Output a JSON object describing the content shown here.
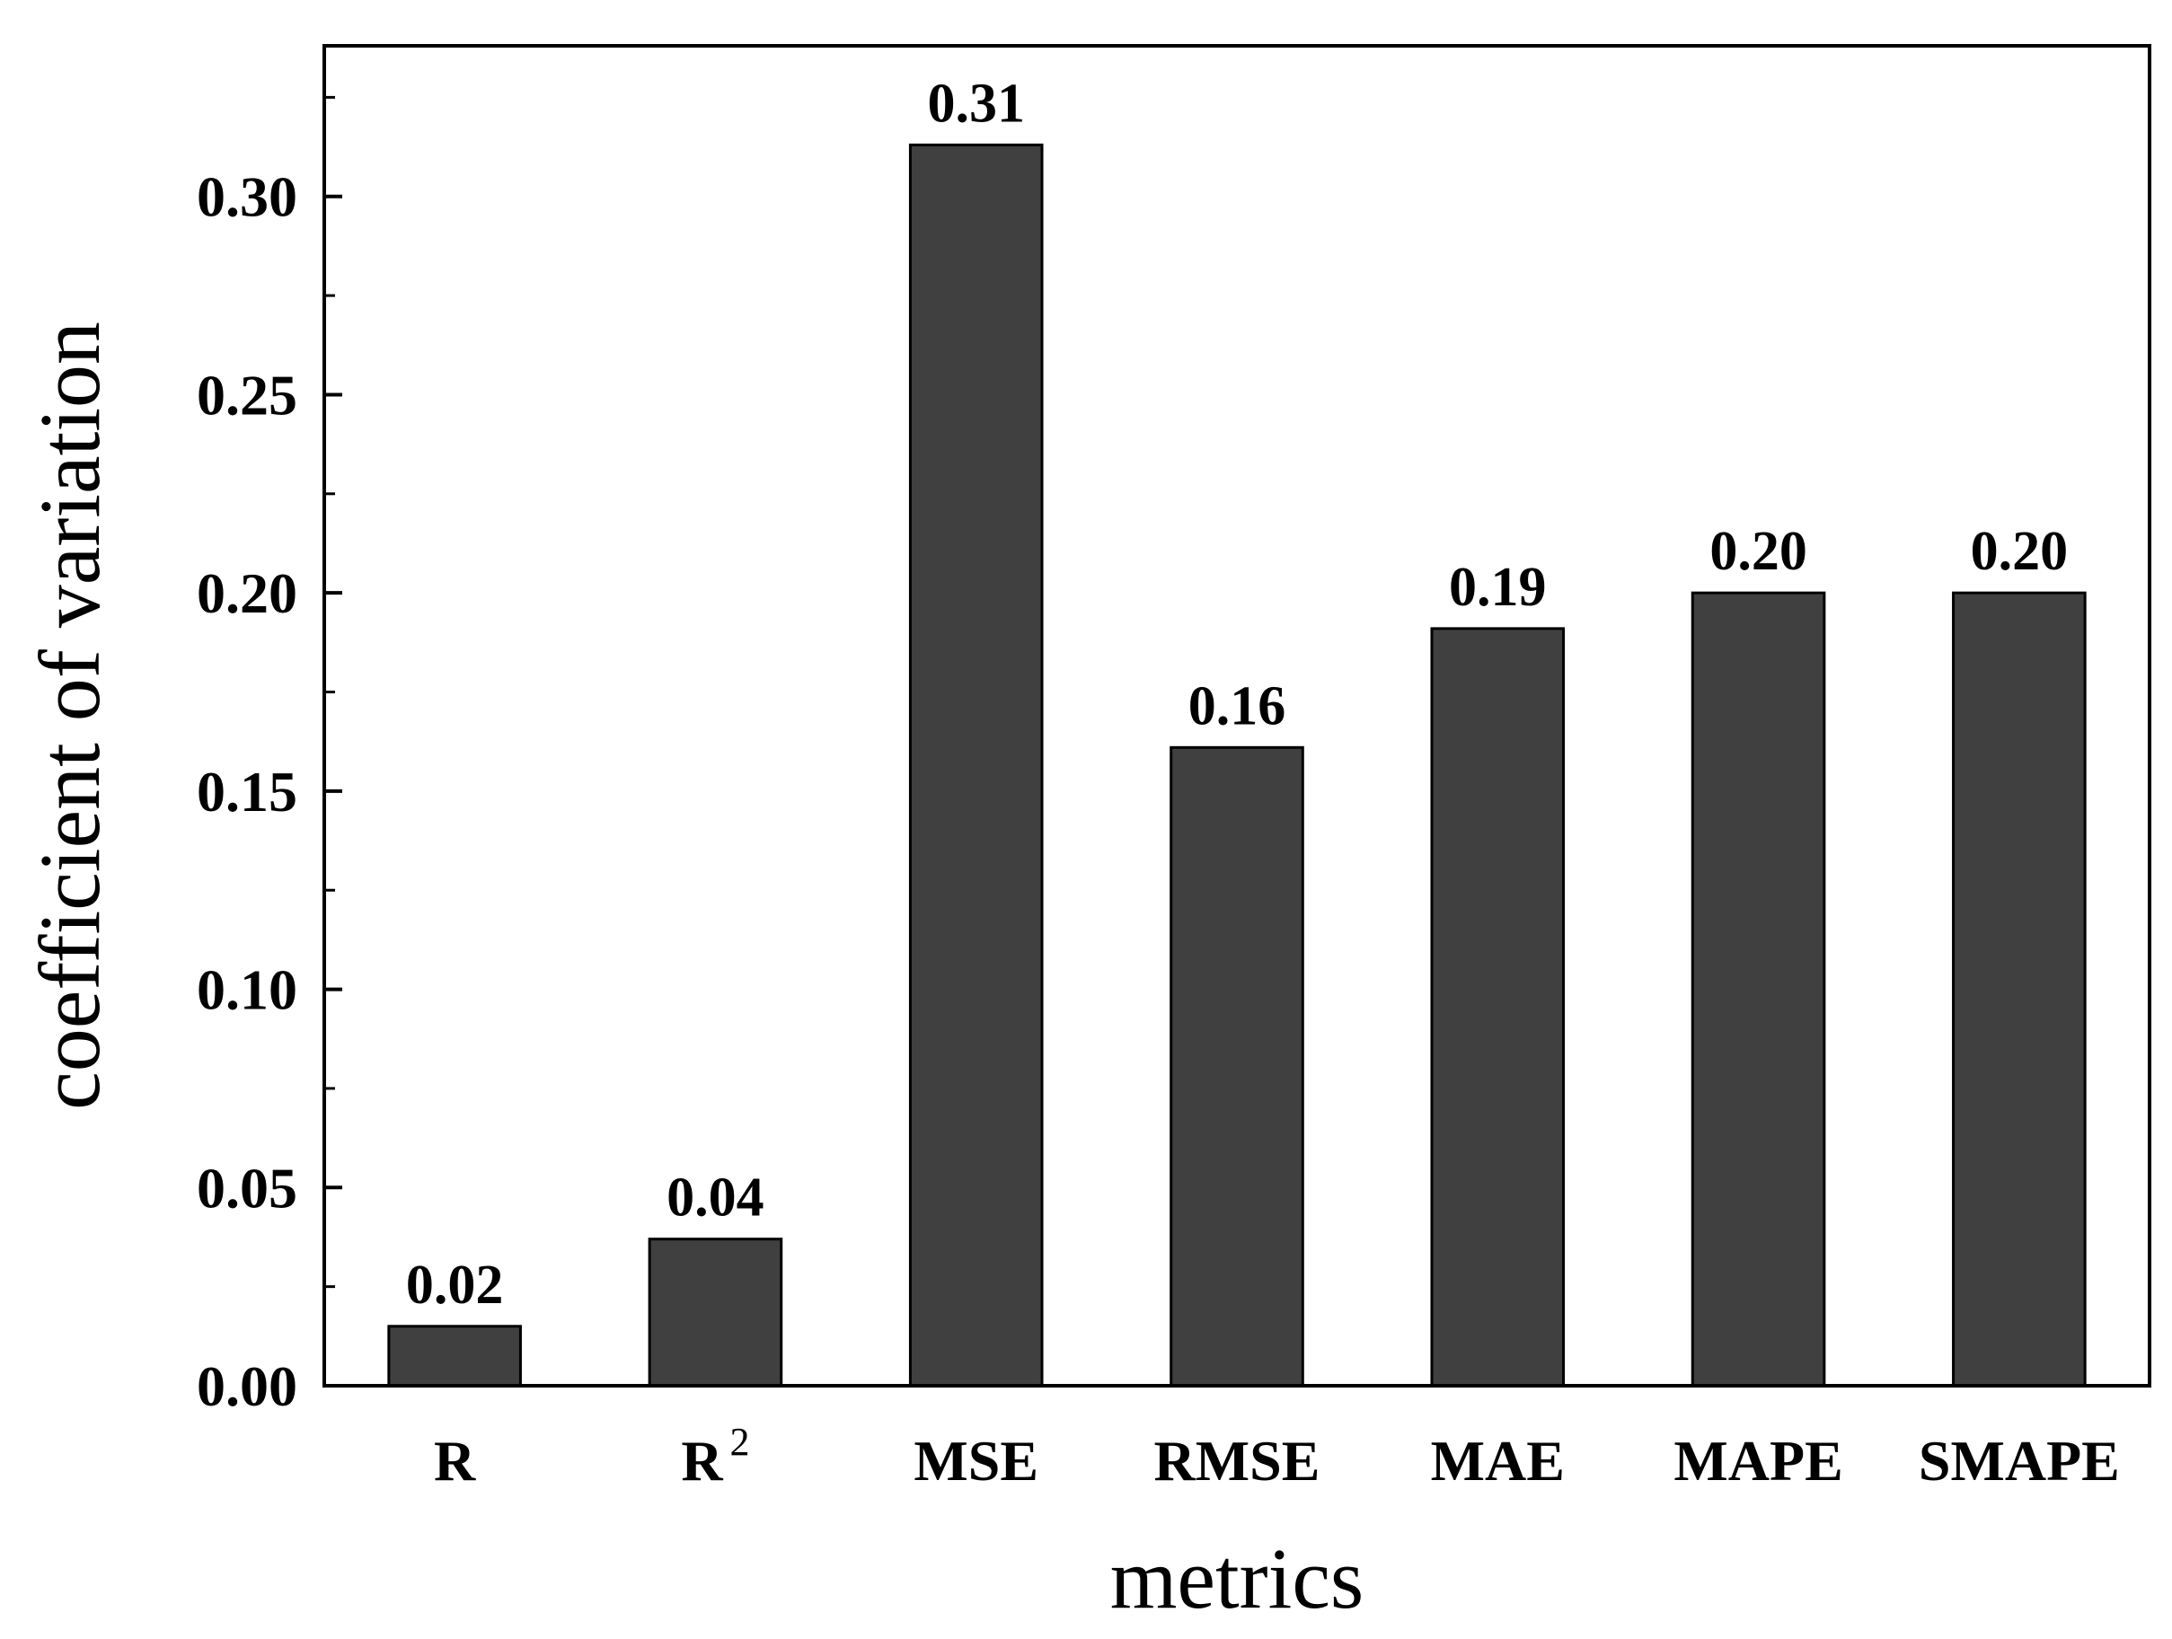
{
  "chart_data": {
    "type": "bar",
    "title": "",
    "xlabel": "metrics",
    "ylabel": "coefficient of variation",
    "categories": [
      "R",
      "R²",
      "MSE",
      "RMSE",
      "MAE",
      "MAPE",
      "SMAPE"
    ],
    "values": [
      0.015,
      0.037,
      0.313,
      0.161,
      0.191,
      0.2,
      0.2
    ],
    "data_labels": [
      "0.02",
      "0.04",
      "0.31",
      "0.16",
      "0.19",
      "0.20",
      "0.20"
    ],
    "ylim": [
      0,
      0.338
    ],
    "yticks": [
      0.0,
      0.05,
      0.1,
      0.15,
      0.2,
      0.25,
      0.3
    ],
    "ytick_labels": [
      "0.00",
      "0.05",
      "0.10",
      "0.15",
      "0.20",
      "0.25",
      "0.30"
    ],
    "grid": false,
    "legend": "none",
    "bar_color": "#404040"
  }
}
